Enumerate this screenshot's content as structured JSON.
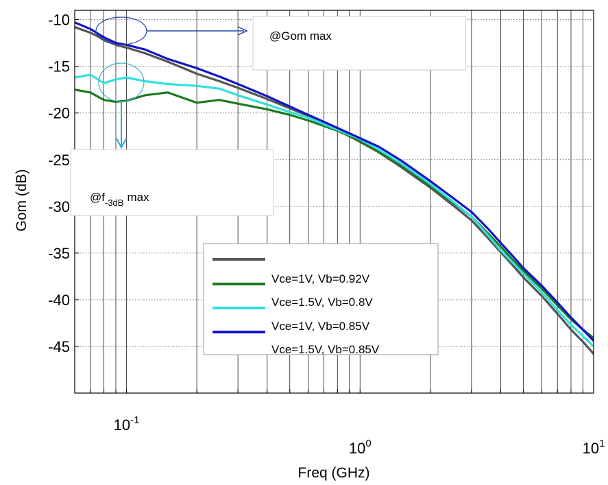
{
  "chart_data": {
    "type": "line",
    "xlabel": "Freq (GHz)",
    "ylabel": "Gom (dB)",
    "xscale": "log",
    "xlim": [
      0.06,
      10
    ],
    "ylim": [
      -50,
      -9
    ],
    "grid": true,
    "xticks": [
      {
        "value": 0.1,
        "base": "10",
        "exp": "-1"
      },
      {
        "value": 1,
        "base": "10",
        "exp": "0"
      },
      {
        "value": 10,
        "base": "10",
        "exp": "1"
      }
    ],
    "yticks": [
      {
        "value": -10,
        "label": "-10"
      },
      {
        "value": -15,
        "label": "-15"
      },
      {
        "value": -20,
        "label": "-20"
      },
      {
        "value": -25,
        "label": "-25"
      },
      {
        "value": -30,
        "label": "-30"
      },
      {
        "value": -35,
        "label": "-35"
      },
      {
        "value": -40,
        "label": "-40"
      },
      {
        "value": -45,
        "label": "-45"
      }
    ],
    "legend_position": "center-right",
    "legend_labels": [
      "Vce=1V,  Vb=0.92V",
      "Vce=1.5V,  Vb=0.8V",
      "Vce=1V,  Vb=0.85V",
      "Vce=1.5V,  Vb=0.85V"
    ],
    "series": [
      {
        "color": "#555555",
        "x": [
          0.06,
          0.07,
          0.08,
          0.09,
          0.1,
          0.12,
          0.15,
          0.2,
          0.25,
          0.3,
          0.4,
          0.5,
          0.6,
          0.8,
          1.0,
          1.2,
          1.5,
          2.0,
          2.5,
          3.0,
          3.5,
          4.0,
          4.5,
          5.0,
          6.0,
          7.0,
          8.0,
          9.0,
          10.0
        ],
        "y": [
          -10.8,
          -11.4,
          -12.1,
          -12.7,
          -13.0,
          -13.6,
          -14.5,
          -15.8,
          -16.6,
          -17.3,
          -18.5,
          -19.5,
          -20.3,
          -21.8,
          -23.1,
          -24.2,
          -25.8,
          -28.0,
          -29.9,
          -31.5,
          -33.3,
          -34.9,
          -36.3,
          -37.6,
          -39.6,
          -41.5,
          -43.2,
          -44.5,
          -45.8
        ]
      },
      {
        "color": "#1e7a1e",
        "x": [
          0.06,
          0.07,
          0.08,
          0.09,
          0.1,
          0.12,
          0.15,
          0.2,
          0.25,
          0.3,
          0.4,
          0.5,
          0.6,
          0.8,
          1.0,
          1.2,
          1.5,
          2.0,
          2.5,
          3.0,
          3.5,
          4.0,
          4.5,
          5.0,
          6.0,
          7.0,
          8.0,
          9.0,
          10.0
        ],
        "y": [
          -17.5,
          -17.8,
          -18.6,
          -18.8,
          -18.7,
          -18.1,
          -17.8,
          -18.9,
          -18.6,
          -19.0,
          -19.6,
          -20.2,
          -20.8,
          -21.9,
          -23.0,
          -24.1,
          -25.6,
          -27.8,
          -29.6,
          -31.1,
          -32.8,
          -34.3,
          -35.7,
          -36.9,
          -38.8,
          -40.6,
          -42.1,
          -43.2,
          -44.1
        ]
      },
      {
        "color": "#33e0e0",
        "x": [
          0.06,
          0.07,
          0.08,
          0.09,
          0.1,
          0.12,
          0.15,
          0.2,
          0.25,
          0.3,
          0.4,
          0.5,
          0.6,
          0.8,
          1.0,
          1.2,
          1.5,
          2.0,
          2.5,
          3.0,
          3.5,
          4.0,
          4.5,
          5.0,
          6.0,
          7.0,
          8.0,
          9.0,
          10.0
        ],
        "y": [
          -16.2,
          -15.9,
          -16.8,
          -16.4,
          -16.2,
          -16.6,
          -16.9,
          -17.1,
          -17.4,
          -18.1,
          -19.1,
          -19.9,
          -20.5,
          -21.8,
          -22.8,
          -23.9,
          -25.4,
          -27.6,
          -29.5,
          -31.1,
          -33.0,
          -34.7,
          -36.0,
          -37.2,
          -39.2,
          -41.1,
          -42.7,
          -43.9,
          -45.0
        ]
      },
      {
        "color": "#1414c8",
        "x": [
          0.06,
          0.07,
          0.08,
          0.09,
          0.1,
          0.12,
          0.15,
          0.2,
          0.25,
          0.3,
          0.4,
          0.5,
          0.6,
          0.8,
          1.0,
          1.2,
          1.5,
          2.0,
          2.5,
          3.0,
          3.5,
          4.0,
          4.5,
          5.0,
          6.0,
          7.0,
          8.0,
          9.0,
          10.0
        ],
        "y": [
          -10.3,
          -11.0,
          -11.9,
          -12.5,
          -12.7,
          -13.2,
          -14.2,
          -15.2,
          -16.1,
          -16.9,
          -18.2,
          -19.3,
          -20.2,
          -21.6,
          -22.7,
          -23.6,
          -25.1,
          -27.3,
          -29.1,
          -30.6,
          -32.3,
          -33.9,
          -35.3,
          -36.6,
          -38.5,
          -40.3,
          -41.9,
          -43.2,
          -44.4
        ]
      }
    ]
  },
  "annotations": {
    "gom_max": "@Gom max",
    "f3db_prefix": "@f",
    "f3db_sub": "-3dB",
    "f3db_suffix": "max"
  }
}
